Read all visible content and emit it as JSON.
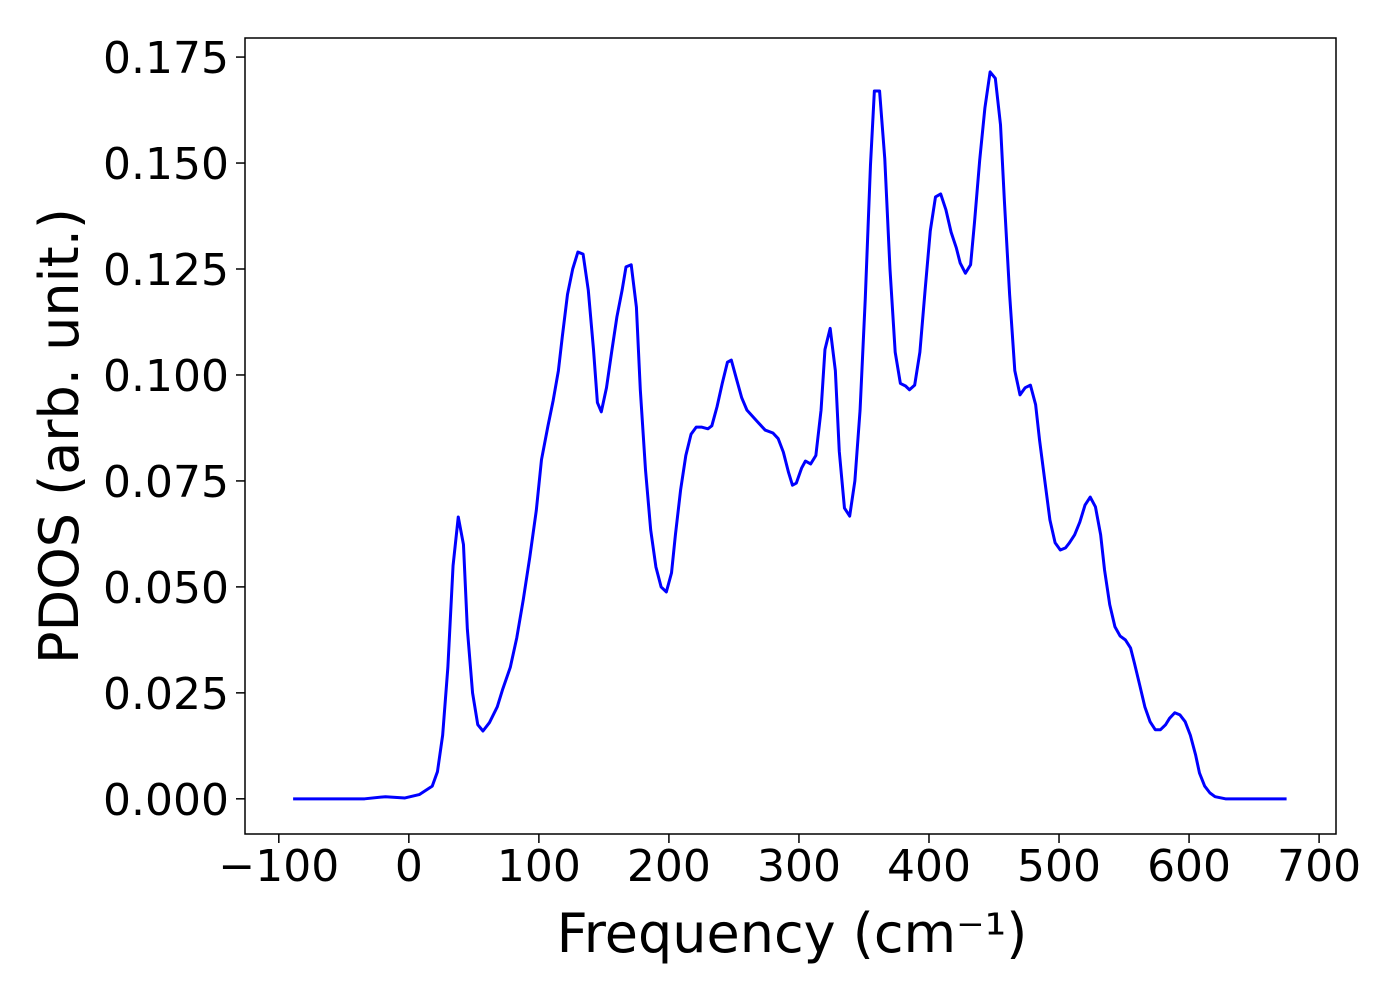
{
  "chart_data": {
    "type": "line",
    "x_label": "Frequency (cm⁻¹)",
    "y_label": "PDOS (arb. unit.)",
    "color": "#0000ff",
    "xlim": [
      -126,
      713
    ],
    "ylim": [
      -0.0083,
      0.1795
    ],
    "xticks": [
      {
        "value": -100,
        "label": "−100"
      },
      0,
      100,
      200,
      300,
      400,
      500,
      600,
      700
    ],
    "yticks": [
      {
        "value": 0,
        "label": "0.000"
      },
      {
        "value": 0.025,
        "label": "0.025"
      },
      {
        "value": 0.05,
        "label": "0.050"
      },
      {
        "value": 0.075,
        "label": "0.075"
      },
      {
        "value": 0.1,
        "label": "0.100"
      },
      {
        "value": 0.125,
        "label": "0.125"
      },
      {
        "value": 0.15,
        "label": "0.150"
      },
      {
        "value": 0.175,
        "label": "0.175"
      }
    ],
    "grid": false,
    "x": [
      -89,
      -34,
      -18,
      -3,
      8,
      18,
      22,
      26,
      30,
      34,
      38,
      42,
      45,
      49,
      53,
      57,
      62,
      68,
      72,
      78,
      83,
      88,
      93,
      98,
      102,
      107,
      111,
      115,
      118,
      122,
      126,
      130,
      134,
      138,
      142,
      145,
      148,
      152,
      156,
      160,
      164,
      167,
      171,
      175,
      178,
      182,
      186,
      190,
      194,
      198,
      202,
      205,
      209,
      213,
      217,
      221,
      225,
      230,
      233,
      237,
      241,
      245,
      248,
      252,
      256,
      260,
      268,
      274,
      280,
      284,
      288,
      292,
      295,
      298,
      302,
      305,
      309,
      313,
      317,
      320,
      324,
      328,
      331,
      335,
      339,
      343,
      347,
      351,
      355,
      358,
      362,
      366,
      370,
      374,
      378,
      382,
      385,
      389,
      393,
      397,
      401,
      405,
      409,
      413,
      417,
      421,
      424,
      428,
      432,
      435,
      439,
      443,
      447,
      451,
      455,
      458,
      462,
      466,
      470,
      474,
      478,
      482,
      485,
      489,
      493,
      497,
      501,
      505,
      508,
      512,
      516,
      520,
      524,
      528,
      532,
      535,
      539,
      543,
      547,
      551,
      555,
      558,
      562,
      566,
      570,
      574,
      578,
      582,
      585,
      589,
      593,
      597,
      601,
      605,
      608,
      612,
      616,
      620,
      628,
      675
    ],
    "values": [
      0,
      0,
      0.0005,
      0.0002,
      0.001,
      0.003,
      0.0064,
      0.015,
      0.031,
      0.055,
      0.0665,
      0.06,
      0.04,
      0.025,
      0.0175,
      0.016,
      0.018,
      0.0217,
      0.0257,
      0.031,
      0.038,
      0.047,
      0.057,
      0.068,
      0.08,
      0.088,
      0.094,
      0.101,
      0.109,
      0.119,
      0.125,
      0.129,
      0.1285,
      0.12,
      0.106,
      0.0935,
      0.0913,
      0.097,
      0.1055,
      0.1137,
      0.12,
      0.1255,
      0.126,
      0.116,
      0.0965,
      0.0776,
      0.0634,
      0.0547,
      0.05,
      0.0488,
      0.0533,
      0.0623,
      0.0729,
      0.081,
      0.086,
      0.0877,
      0.0877,
      0.0873,
      0.088,
      0.0925,
      0.098,
      0.103,
      0.1035,
      0.099,
      0.0946,
      0.0917,
      0.089,
      0.087,
      0.0863,
      0.085,
      0.0818,
      0.077,
      0.074,
      0.0745,
      0.078,
      0.0797,
      0.079,
      0.081,
      0.0917,
      0.106,
      0.111,
      0.101,
      0.082,
      0.0686,
      0.0667,
      0.075,
      0.0917,
      0.118,
      0.1495,
      0.167,
      0.167,
      0.151,
      0.125,
      0.1054,
      0.098,
      0.0974,
      0.0965,
      0.0976,
      0.1054,
      0.12,
      0.134,
      0.142,
      0.1427,
      0.139,
      0.1337,
      0.13,
      0.1264,
      0.124,
      0.126,
      0.136,
      0.1507,
      0.163,
      0.1715,
      0.17,
      0.159,
      0.141,
      0.119,
      0.101,
      0.0953,
      0.097,
      0.0976,
      0.093,
      0.0847,
      0.0752,
      0.0658,
      0.0604,
      0.0587,
      0.0592,
      0.0604,
      0.0623,
      0.0653,
      0.0693,
      0.0712,
      0.0689,
      0.0623,
      0.054,
      0.0458,
      0.0406,
      0.0384,
      0.0375,
      0.0356,
      0.032,
      0.0269,
      0.0217,
      0.0182,
      0.0163,
      0.0163,
      0.0175,
      0.019,
      0.0203,
      0.0198,
      0.0182,
      0.015,
      0.0104,
      0.0061,
      0.003,
      0.0014,
      0.0005,
      0,
      0
    ]
  }
}
